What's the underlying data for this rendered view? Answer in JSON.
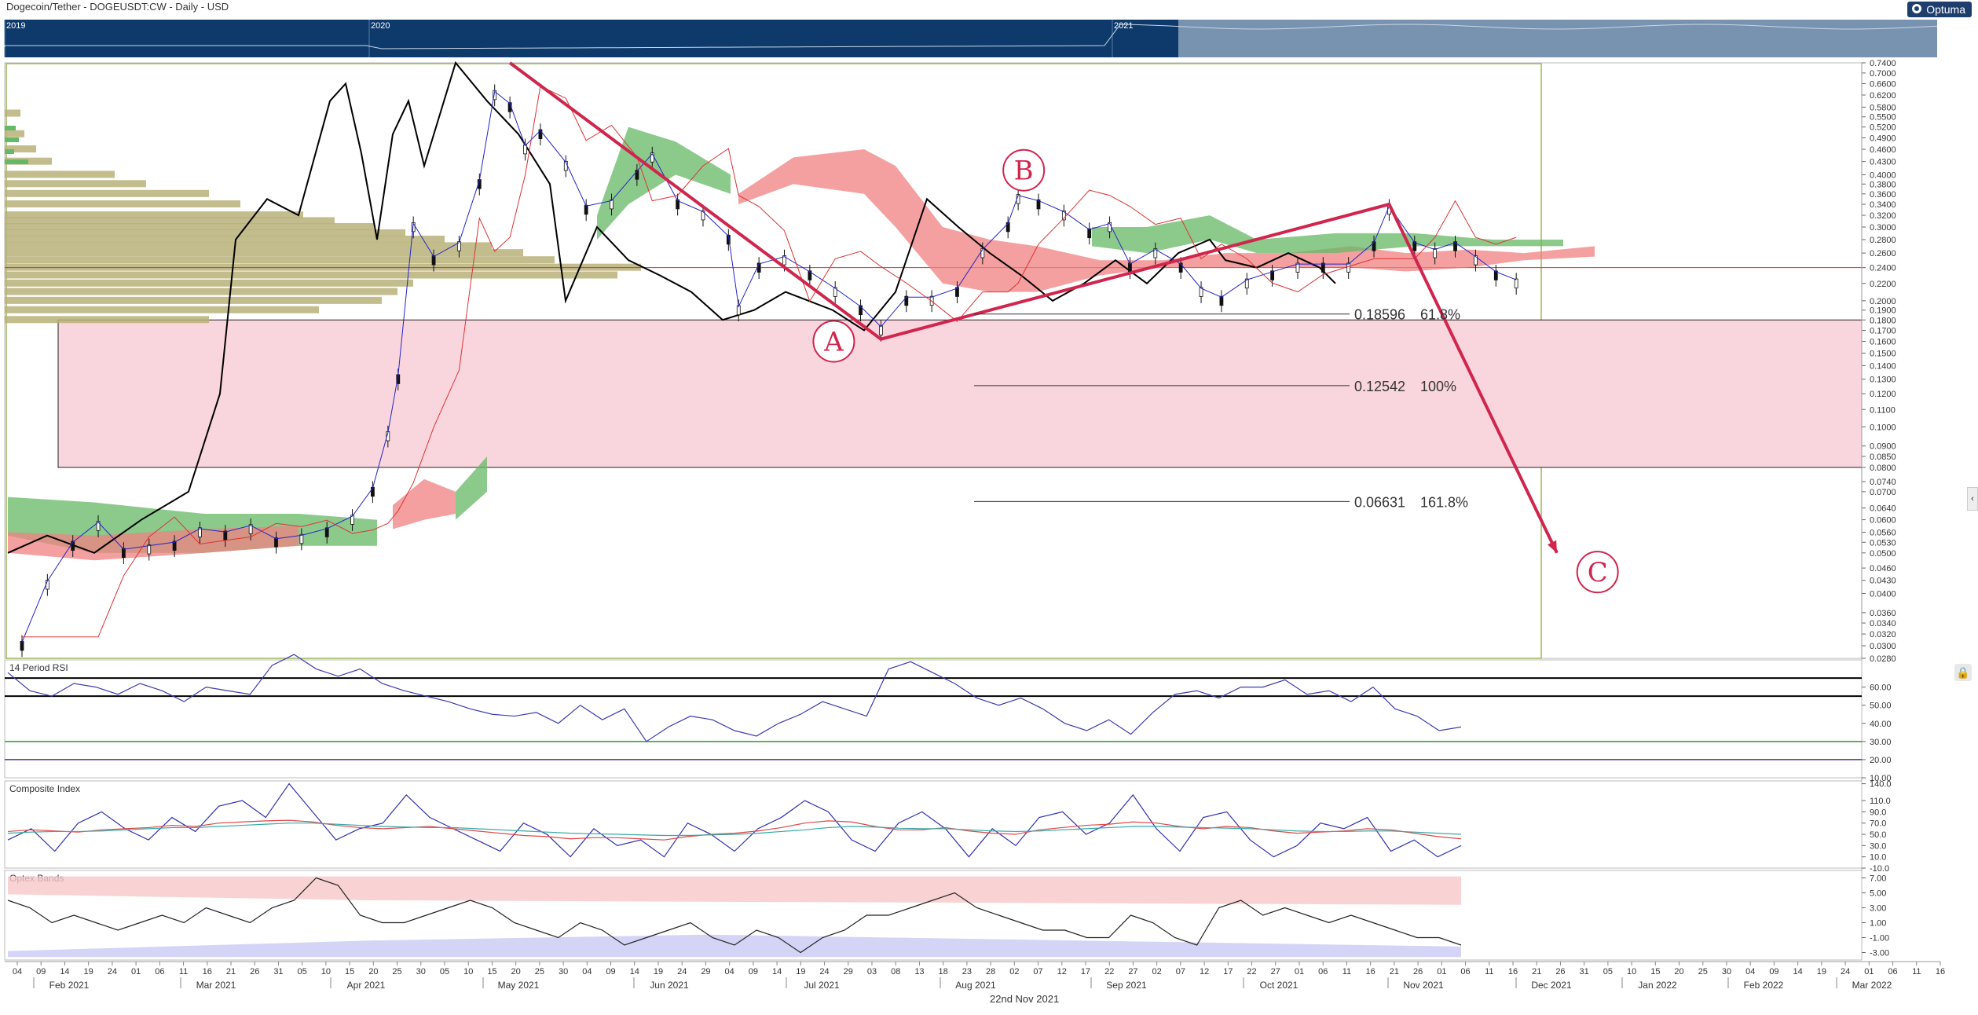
{
  "header": {
    "title": "Dogecoin/Tether - DOGEUSDT:CW - Daily - USD",
    "brand": "Optuma"
  },
  "navigator": {
    "year_labels": [
      "2019",
      "2020",
      "2021"
    ]
  },
  "footer": {
    "date_label": "22nd Nov 2021"
  },
  "colors": {
    "navigator_bg": "#0d3a6b",
    "navigator_window": "#7893b0",
    "volume_profile": "#b9b27a",
    "cloud_bull": "#66b866",
    "cloud_bear": "#f08080",
    "target_zone": "#f9d6de",
    "pattern_line": "#d0254d",
    "price_line": "#000000",
    "fast_line": "#2424c8"
  },
  "chart_data": [
    {
      "type": "line",
      "title": "Dogecoin/Tether - DOGEUSDT:CW - Daily - USD",
      "scale": "log",
      "ylim": [
        0.028,
        0.74
      ],
      "y_ticks": [
        "0.7400",
        "0.7000",
        "0.6600",
        "0.6200",
        "0.5800",
        "0.5500",
        "0.5200",
        "0.4900",
        "0.4600",
        "0.4300",
        "0.4000",
        "0.3800",
        "0.3600",
        "0.3400",
        "0.3200",
        "0.3000",
        "0.2800",
        "0.2600",
        "0.2400",
        "0.2200",
        "0.2000",
        "0.1900",
        "0.1800",
        "0.1700",
        "0.1600",
        "0.1500",
        "0.1400",
        "0.1300",
        "0.1200",
        "0.1100",
        "0.1000",
        "0.0900",
        "0.0850",
        "0.0800",
        "0.0740",
        "0.0700",
        "0.0640",
        "0.0600",
        "0.0560",
        "0.0530",
        "0.0500",
        "0.0460",
        "0.0430",
        "0.0400",
        "0.0360",
        "0.0340",
        "0.0320",
        "0.0300",
        "0.0280"
      ],
      "x_tick_days": [
        "04",
        "09",
        "14",
        "19",
        "24",
        "01",
        "06",
        "11",
        "16",
        "21",
        "26",
        "31",
        "05",
        "10",
        "15",
        "20",
        "25",
        "30",
        "05",
        "10",
        "15",
        "20",
        "25",
        "30",
        "04",
        "09",
        "14",
        "19",
        "24",
        "29",
        "04",
        "09",
        "14",
        "19",
        "24",
        "29",
        "03",
        "08",
        "13",
        "18",
        "23",
        "28",
        "02",
        "07",
        "12",
        "17",
        "22",
        "27",
        "02",
        "07",
        "12",
        "17",
        "22",
        "27",
        "01",
        "06",
        "11",
        "16",
        "21",
        "26",
        "01",
        "06",
        "11",
        "16",
        "21",
        "26",
        "31",
        "05",
        "10",
        "15",
        "20",
        "25",
        "30",
        "04",
        "09",
        "14",
        "19",
        "24",
        "01",
        "06",
        "11",
        "16"
      ],
      "x_month_labels": [
        "Feb 2021",
        "Mar 2021",
        "Apr 2021",
        "May 2021",
        "Jun 2021",
        "Jul 2021",
        "Aug 2021",
        "Sep 2021",
        "Oct 2021",
        "Nov 2021",
        "Dec 2021",
        "Jan 2022",
        "Feb 2022",
        "Mar 2022"
      ],
      "series": [
        {
          "x": [
            "2021-02-01",
            "2021-02-06",
            "2021-02-11",
            "2021-02-16",
            "2021-02-21",
            "2021-02-26",
            "2021-03-03",
            "2021-03-08",
            "2021-03-13",
            "2021-03-18",
            "2021-03-23",
            "2021-03-28",
            "2021-04-02",
            "2021-04-07",
            "2021-04-11",
            "2021-04-14",
            "2021-04-16",
            "2021-04-19",
            "2021-04-23",
            "2021-04-28",
            "2021-05-02",
            "2021-05-05",
            "2021-05-08",
            "2021-05-11",
            "2021-05-14",
            "2021-05-19",
            "2021-05-23",
            "2021-05-28",
            "2021-06-02",
            "2021-06-05",
            "2021-06-10",
            "2021-06-15",
            "2021-06-20",
            "2021-06-22",
            "2021-06-26",
            "2021-07-01",
            "2021-07-06",
            "2021-07-11",
            "2021-07-16",
            "2021-07-20",
            "2021-07-25",
            "2021-07-30",
            "2021-08-04",
            "2021-08-09",
            "2021-08-14",
            "2021-08-16",
            "2021-08-20",
            "2021-08-25",
            "2021-08-30",
            "2021-09-03",
            "2021-09-07",
            "2021-09-12",
            "2021-09-17",
            "2021-09-21",
            "2021-09-25",
            "2021-09-30",
            "2021-10-05",
            "2021-10-10",
            "2021-10-15",
            "2021-10-20",
            "2021-10-25",
            "2021-10-28",
            "2021-11-02",
            "2021-11-06",
            "2021-11-10",
            "2021-11-14",
            "2021-11-18",
            "2021-11-22"
          ],
          "values": [
            0.03,
            0.042,
            0.052,
            0.058,
            0.05,
            0.051,
            0.052,
            0.056,
            0.055,
            0.057,
            0.053,
            0.054,
            0.056,
            0.06,
            0.07,
            0.095,
            0.13,
            0.3,
            0.25,
            0.27,
            0.38,
            0.62,
            0.58,
            0.46,
            0.5,
            0.42,
            0.33,
            0.34,
            0.4,
            0.44,
            0.34,
            0.32,
            0.28,
            0.19,
            0.24,
            0.25,
            0.23,
            0.21,
            0.19,
            0.17,
            0.2,
            0.2,
            0.21,
            0.26,
            0.3,
            0.35,
            0.34,
            0.32,
            0.29,
            0.3,
            0.24,
            0.26,
            0.24,
            0.21,
            0.2,
            0.22,
            0.23,
            0.24,
            0.24,
            0.24,
            0.27,
            0.33,
            0.27,
            0.26,
            0.27,
            0.25,
            0.23,
            0.22
          ]
        }
      ],
      "annotations": [
        {
          "label": "A",
          "x": "2021-07-20",
          "y": 0.16
        },
        {
          "label": "B",
          "x": "2021-08-14",
          "y": 0.41
        },
        {
          "label": "C",
          "x": "2021-12-08",
          "y": 0.045
        }
      ],
      "pattern": [
        {
          "x": "2021-05-08",
          "y": 0.74
        },
        {
          "x": "2021-07-20",
          "y": 0.162
        },
        {
          "x": "2021-10-28",
          "y": 0.34
        },
        {
          "x": "2021-11-30",
          "y": 0.05
        }
      ],
      "fib_levels": [
        {
          "value": "0.18596",
          "pct": "61.8%"
        },
        {
          "value": "0.12542",
          "pct": "100%"
        },
        {
          "value": "0.06631",
          "pct": "161.8%"
        }
      ],
      "target_zone": [
        0.08,
        0.18
      ],
      "horizontal_line": 0.24
    },
    {
      "type": "line",
      "title": "14 Period RSI",
      "ylim": [
        10,
        75
      ],
      "y_ticks": [
        "60.00",
        "50.00",
        "40.00",
        "30.00",
        "20.00",
        "10.00"
      ],
      "levels": [
        55,
        65,
        30,
        20
      ],
      "series": [
        {
          "values": [
            68,
            58,
            55,
            62,
            60,
            56,
            62,
            58,
            52,
            60,
            58,
            56,
            72,
            78,
            70,
            66,
            70,
            62,
            58,
            55,
            52,
            48,
            45,
            44,
            46,
            40,
            50,
            42,
            48,
            30,
            38,
            44,
            42,
            36,
            33,
            40,
            45,
            52,
            48,
            44,
            70,
            74,
            68,
            62,
            54,
            50,
            54,
            48,
            40,
            36,
            42,
            34,
            46,
            56,
            58,
            54,
            60,
            60,
            64,
            56,
            58,
            52,
            60,
            48,
            44,
            36,
            38
          ]
        }
      ]
    },
    {
      "type": "line",
      "title": "Composite Index",
      "ylim": [
        -10,
        145
      ],
      "y_ticks": [
        "140.0",
        "110.0",
        "90.0",
        "70.0",
        "50.0",
        "30.0",
        "10.0",
        "-10.0"
      ],
      "series": [
        {
          "values": [
            40,
            60,
            20,
            70,
            90,
            60,
            40,
            80,
            55,
            100,
            110,
            80,
            140,
            90,
            40,
            60,
            70,
            120,
            80,
            60,
            40,
            20,
            70,
            50,
            10,
            60,
            30,
            40,
            10,
            70,
            50,
            20,
            60,
            80,
            110,
            90,
            40,
            20,
            70,
            90,
            60,
            10,
            60,
            30,
            80,
            90,
            50,
            70,
            120,
            60,
            20,
            80,
            90,
            40,
            10,
            30,
            70,
            60,
            80,
            20,
            40,
            10,
            30
          ]
        },
        {
          "values": [
            55,
            58,
            56,
            54,
            58,
            60,
            62,
            66,
            64,
            70,
            72,
            74,
            75,
            72,
            66,
            62,
            60,
            62,
            64,
            60,
            56,
            52,
            48,
            46,
            42,
            44,
            44,
            42,
            40,
            46,
            50,
            52,
            56,
            62,
            70,
            74,
            72,
            64,
            58,
            58,
            62,
            56,
            52,
            50,
            58,
            62,
            66,
            68,
            72,
            70,
            64,
            60,
            64,
            62,
            56,
            52,
            54,
            56,
            60,
            58,
            52,
            46,
            42
          ]
        },
        {
          "values": [
            52,
            54,
            55,
            55,
            56,
            58,
            60,
            62,
            62,
            64,
            66,
            68,
            70,
            70,
            68,
            66,
            64,
            63,
            62,
            62,
            60,
            58,
            56,
            54,
            52,
            51,
            50,
            49,
            48,
            48,
            49,
            50,
            52,
            55,
            58,
            62,
            64,
            63,
            61,
            60,
            60,
            58,
            56,
            55,
            56,
            58,
            60,
            62,
            64,
            64,
            63,
            62,
            61,
            60,
            58,
            56,
            55,
            55,
            56,
            56,
            54,
            52,
            50
          ]
        }
      ]
    },
    {
      "type": "line",
      "title": "Optex Bands",
      "ylim": [
        -4,
        8
      ],
      "y_ticks": [
        "7.00",
        "5.00",
        "3.00",
        "1.00",
        "-1.00",
        "-3.00"
      ],
      "series": [
        {
          "values": [
            4,
            3,
            1,
            2,
            1,
            0,
            1,
            2,
            1,
            3,
            2,
            1,
            3,
            4,
            7,
            6,
            2,
            1,
            1,
            2,
            3,
            4,
            3,
            1,
            0,
            -1,
            1,
            0,
            -2,
            -1,
            0,
            1,
            -1,
            -2,
            0,
            -1,
            -3,
            -1,
            0,
            2,
            2,
            3,
            4,
            5,
            3,
            2,
            1,
            0,
            0,
            -1,
            -1,
            2,
            1,
            -1,
            -2,
            3,
            4,
            2,
            3,
            2,
            1,
            2,
            1,
            0,
            -1,
            -1,
            -2
          ]
        }
      ]
    }
  ]
}
